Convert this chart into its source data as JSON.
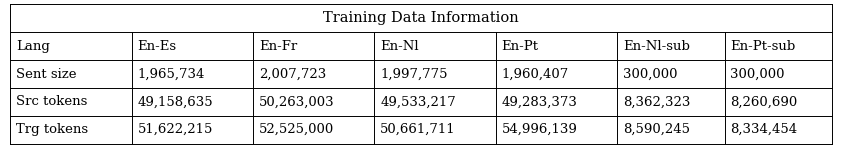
{
  "title": "Training Data Information",
  "columns": [
    "Lang",
    "En-Es",
    "En-Fr",
    "En-Nl",
    "En-Pt",
    "En-Nl-sub",
    "En-Pt-sub"
  ],
  "rows": [
    [
      "Sent size",
      "1,965,734",
      "2,007,723",
      "1,997,775",
      "1,960,407",
      "300,000",
      "300,000"
    ],
    [
      "Src tokens",
      "49,158,635",
      "50,263,003",
      "49,533,217",
      "49,283,373",
      "8,362,323",
      "8,260,690"
    ],
    [
      "Trg tokens",
      "51,622,215",
      "52,525,000",
      "50,661,711",
      "54,996,139",
      "8,590,245",
      "8,334,454"
    ]
  ],
  "col_widths": [
    1.3,
    1.3,
    1.3,
    1.3,
    1.3,
    1.15,
    1.15
  ],
  "background_color": "#ffffff",
  "line_color": "#000000",
  "font_size": 9.5,
  "title_font_size": 10.5,
  "fig_width": 8.42,
  "fig_height": 1.48,
  "dpi": 100
}
